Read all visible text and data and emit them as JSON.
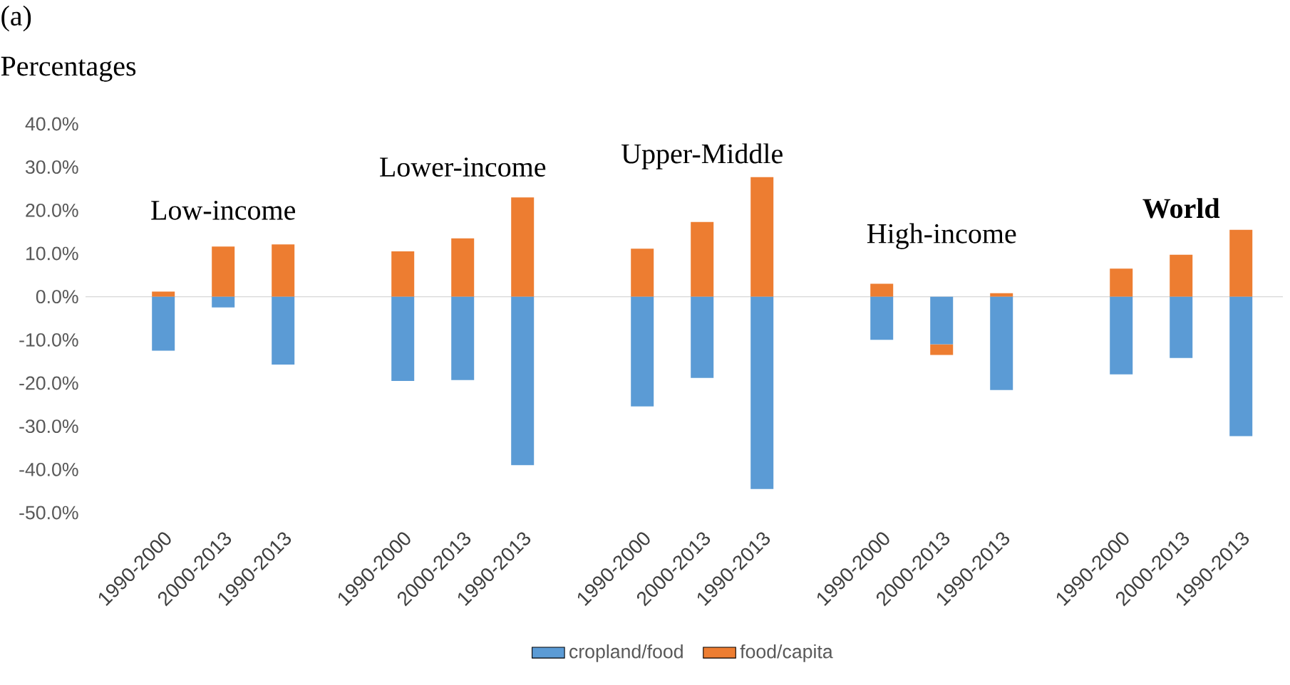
{
  "chart_data": {
    "type": "bar",
    "title": "(a)",
    "ylabel": "Percentages",
    "categories": [
      "1990-2000",
      "2000-2013",
      "1990-2013",
      null,
      "1990-2000",
      "2000-2013",
      "1990-2013",
      null,
      "1990-2000",
      "2000-2013",
      "1990-2013",
      null,
      "1990-2000",
      "2000-2013",
      "1990-2013",
      null,
      "1990-2000",
      "2000-2013",
      "1990-2013"
    ],
    "series": [
      {
        "name": "cropland/food",
        "color": "#5b9bd5",
        "values": [
          -12.5,
          -2.5,
          -15.7,
          null,
          -19.5,
          -19.3,
          -39.0,
          null,
          -25.4,
          -18.8,
          -44.5,
          null,
          -10.0,
          -11.0,
          -21.6,
          null,
          -18.0,
          -14.2,
          -32.3
        ]
      },
      {
        "name": "food/capita",
        "color": "#ed7d31",
        "values": [
          1.2,
          11.6,
          12.1,
          null,
          10.5,
          13.5,
          23.0,
          null,
          11.1,
          17.3,
          27.7,
          null,
          3.0,
          -2.5,
          0.8,
          null,
          6.5,
          9.7,
          15.5
        ]
      }
    ],
    "annotations": [
      "Low-income",
      "Lower-income",
      "Upper-Middle",
      "High-income",
      "World"
    ],
    "ylim": [
      -50,
      40
    ],
    "yticks": [
      {
        "value": -50,
        "label": "-50.0%"
      },
      {
        "value": -40,
        "label": "-40.0%"
      },
      {
        "value": -30,
        "label": "-30.0%"
      },
      {
        "value": -20,
        "label": "-20.0%"
      },
      {
        "value": -10,
        "label": "-10.0%"
      },
      {
        "value": 0,
        "label": "0.0%"
      },
      {
        "value": 10,
        "label": "10.0%"
      },
      {
        "value": 20,
        "label": "20.0%"
      },
      {
        "value": 30,
        "label": "30.0%"
      },
      {
        "value": 40,
        "label": "40.0%"
      }
    ],
    "stacked": true,
    "legend": "bottom"
  }
}
